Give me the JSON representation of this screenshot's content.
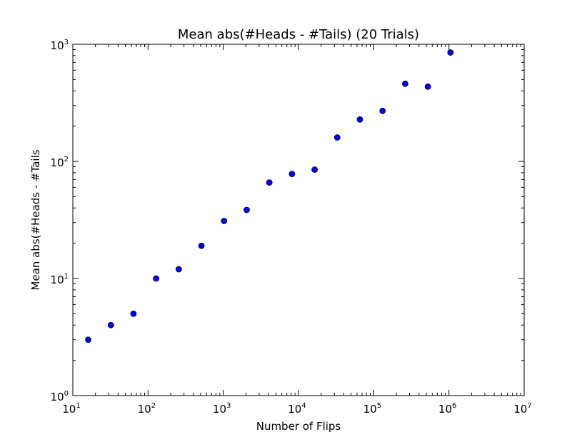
{
  "chart_data": {
    "type": "scatter",
    "title": "Mean abs(#Heads - #Tails) (20 Trials)",
    "xlabel": "Number of Flips",
    "ylabel": "Mean abs(#Heads - #Tails",
    "xscale": "log",
    "yscale": "log",
    "xlim": [
      10,
      10000000
    ],
    "ylim": [
      1,
      1000
    ],
    "grid": false,
    "legend": "none",
    "marker_color": "#0000ff",
    "marker_edge_color": "#000000",
    "x_ticks": [
      {
        "base": "10",
        "exp": "1"
      },
      {
        "base": "10",
        "exp": "2"
      },
      {
        "base": "10",
        "exp": "3"
      },
      {
        "base": "10",
        "exp": "4"
      },
      {
        "base": "10",
        "exp": "5"
      },
      {
        "base": "10",
        "exp": "6"
      },
      {
        "base": "10",
        "exp": "7"
      }
    ],
    "y_ticks": [
      {
        "base": "10",
        "exp": "0"
      },
      {
        "base": "10",
        "exp": "1"
      },
      {
        "base": "10",
        "exp": "2"
      },
      {
        "base": "10",
        "exp": "3"
      }
    ],
    "points": [
      {
        "x": 16,
        "y": 3.0
      },
      {
        "x": 32,
        "y": 4.0
      },
      {
        "x": 64,
        "y": 5.0
      },
      {
        "x": 128,
        "y": 10.0
      },
      {
        "x": 256,
        "y": 12.0
      },
      {
        "x": 512,
        "y": 19.0
      },
      {
        "x": 1024,
        "y": 31.0
      },
      {
        "x": 2048,
        "y": 38.5
      },
      {
        "x": 4096,
        "y": 66.0
      },
      {
        "x": 8192,
        "y": 78.0
      },
      {
        "x": 16384,
        "y": 85.0
      },
      {
        "x": 32768,
        "y": 160.0
      },
      {
        "x": 65536,
        "y": 228.0
      },
      {
        "x": 131072,
        "y": 270.0
      },
      {
        "x": 262144,
        "y": 460.0
      },
      {
        "x": 524288,
        "y": 435.0
      },
      {
        "x": 1048576,
        "y": 850.0
      }
    ]
  }
}
